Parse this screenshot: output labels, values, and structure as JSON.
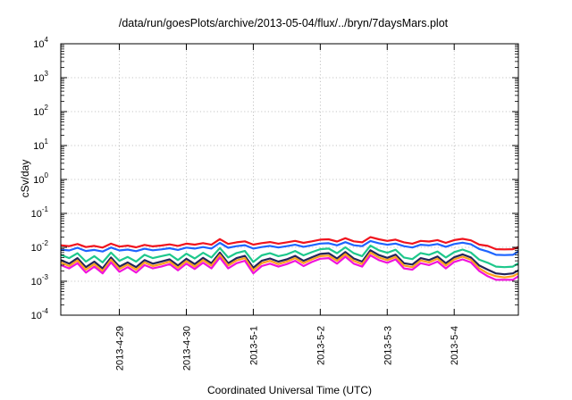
{
  "chart_data": {
    "type": "line",
    "title": "/data/run/goesPlots/archive/2013-05-04/flux/../bryn/7daysMars.plot",
    "xlabel": "Coordinated Universal Time (UTC)",
    "ylabel": "cSv/day",
    "yscale": "log",
    "ylim": [
      0.0001,
      10000
    ],
    "xlim": [
      "2013-04-28T03:00",
      "2013-05-04T23:00"
    ],
    "grid": true,
    "y_ticks": [
      {
        "base": "10",
        "exp": "-4",
        "value": 0.0001
      },
      {
        "base": "10",
        "exp": "-3",
        "value": 0.001
      },
      {
        "base": "10",
        "exp": "-2",
        "value": 0.01
      },
      {
        "base": "10",
        "exp": "-1",
        "value": 0.1
      },
      {
        "base": "10",
        "exp": "0",
        "value": 1
      },
      {
        "base": "10",
        "exp": "1",
        "value": 10
      },
      {
        "base": "10",
        "exp": "2",
        "value": 100
      },
      {
        "base": "10",
        "exp": "3",
        "value": 1000
      },
      {
        "base": "10",
        "exp": "4",
        "value": 10000
      }
    ],
    "x_ticks": [
      {
        "label": "2013-4-29",
        "value": "2013-04-29T00:00"
      },
      {
        "label": "2013-4-30",
        "value": "2013-04-30T00:00"
      },
      {
        "label": "2013-5-1",
        "value": "2013-05-01T00:00"
      },
      {
        "label": "2013-5-2",
        "value": "2013-05-02T00:00"
      },
      {
        "label": "2013-5-3",
        "value": "2013-05-03T00:00"
      },
      {
        "label": "2013-5-4",
        "value": "2013-05-04T00:00"
      }
    ],
    "x": [
      "2013-04-28T03:00",
      "2013-04-28T06:00",
      "2013-04-28T09:00",
      "2013-04-28T12:00",
      "2013-04-28T15:00",
      "2013-04-28T18:00",
      "2013-04-28T21:00",
      "2013-04-29T00:00",
      "2013-04-29T03:00",
      "2013-04-29T06:00",
      "2013-04-29T09:00",
      "2013-04-29T12:00",
      "2013-04-29T15:00",
      "2013-04-29T18:00",
      "2013-04-29T21:00",
      "2013-04-30T00:00",
      "2013-04-30T03:00",
      "2013-04-30T06:00",
      "2013-04-30T09:00",
      "2013-04-30T12:00",
      "2013-04-30T15:00",
      "2013-04-30T18:00",
      "2013-04-30T21:00",
      "2013-05-01T00:00",
      "2013-05-01T03:00",
      "2013-05-01T06:00",
      "2013-05-01T09:00",
      "2013-05-01T12:00",
      "2013-05-01T15:00",
      "2013-05-01T18:00",
      "2013-05-01T21:00",
      "2013-05-02T00:00",
      "2013-05-02T03:00",
      "2013-05-02T06:00",
      "2013-05-02T09:00",
      "2013-05-02T12:00",
      "2013-05-02T15:00",
      "2013-05-02T18:00",
      "2013-05-02T21:00",
      "2013-05-03T00:00",
      "2013-05-03T03:00",
      "2013-05-03T06:00",
      "2013-05-03T09:00",
      "2013-05-03T12:00",
      "2013-05-03T15:00",
      "2013-05-03T18:00",
      "2013-05-03T21:00",
      "2013-05-04T00:00",
      "2013-05-04T03:00",
      "2013-05-04T06:00",
      "2013-05-04T09:00",
      "2013-05-04T12:00",
      "2013-05-04T15:00",
      "2013-05-04T18:00",
      "2013-05-04T21:00",
      "2013-05-04T23:00"
    ],
    "series": [
      {
        "color": "#f0141e",
        "values": [
          0.0115,
          0.0108,
          0.0125,
          0.0102,
          0.011,
          0.0098,
          0.0128,
          0.0105,
          0.0112,
          0.01,
          0.0118,
          0.0107,
          0.0113,
          0.0122,
          0.011,
          0.0128,
          0.012,
          0.0133,
          0.0119,
          0.0175,
          0.0126,
          0.014,
          0.015,
          0.012,
          0.0133,
          0.0143,
          0.0128,
          0.014,
          0.0155,
          0.0135,
          0.015,
          0.0168,
          0.0172,
          0.0148,
          0.0185,
          0.015,
          0.014,
          0.02,
          0.0172,
          0.0155,
          0.0168,
          0.014,
          0.0128,
          0.0155,
          0.0148,
          0.0163,
          0.0135,
          0.0163,
          0.0178,
          0.016,
          0.012,
          0.011,
          0.0088,
          0.0087,
          0.0088,
          0.0102
        ]
      },
      {
        "color": "#1e64ff",
        "values": [
          0.0086,
          0.0081,
          0.0097,
          0.0078,
          0.0084,
          0.0075,
          0.0099,
          0.0081,
          0.0086,
          0.0077,
          0.0091,
          0.0082,
          0.0087,
          0.0094,
          0.0084,
          0.0098,
          0.0092,
          0.0102,
          0.0092,
          0.0135,
          0.0097,
          0.0108,
          0.0116,
          0.0092,
          0.0102,
          0.011,
          0.0099,
          0.0108,
          0.0119,
          0.0104,
          0.0115,
          0.0129,
          0.0132,
          0.0114,
          0.0142,
          0.0115,
          0.0108,
          0.0154,
          0.0132,
          0.0119,
          0.0129,
          0.0108,
          0.0099,
          0.0119,
          0.0114,
          0.0125,
          0.0104,
          0.0125,
          0.0137,
          0.0123,
          0.0089,
          0.0075,
          0.006,
          0.0059,
          0.006,
          0.0075
        ]
      },
      {
        "color": "#1ec88c",
        "values": [
          0.006,
          0.0048,
          0.0067,
          0.0038,
          0.0055,
          0.0036,
          0.007,
          0.004,
          0.0052,
          0.0038,
          0.006,
          0.0048,
          0.0055,
          0.0062,
          0.0042,
          0.0065,
          0.0047,
          0.0069,
          0.005,
          0.0095,
          0.005,
          0.0068,
          0.0078,
          0.0037,
          0.0058,
          0.0067,
          0.0055,
          0.0062,
          0.0078,
          0.0058,
          0.0072,
          0.0088,
          0.0092,
          0.0067,
          0.01,
          0.0067,
          0.0055,
          0.0112,
          0.0082,
          0.0069,
          0.0085,
          0.005,
          0.0045,
          0.0068,
          0.006,
          0.0075,
          0.005,
          0.0072,
          0.0086,
          0.007,
          0.0043,
          0.0035,
          0.0027,
          0.0026,
          0.0027,
          0.0034
        ]
      },
      {
        "color": "#23235a",
        "values": [
          0.0042,
          0.0033,
          0.0048,
          0.0026,
          0.0038,
          0.0024,
          0.005,
          0.0027,
          0.0036,
          0.0026,
          0.0042,
          0.0033,
          0.0038,
          0.0044,
          0.0029,
          0.0046,
          0.0032,
          0.0049,
          0.0034,
          0.007,
          0.0034,
          0.0048,
          0.0056,
          0.0025,
          0.004,
          0.0047,
          0.0038,
          0.0044,
          0.0056,
          0.004,
          0.0051,
          0.0064,
          0.0067,
          0.0047,
          0.0073,
          0.0047,
          0.0038,
          0.0082,
          0.0059,
          0.0049,
          0.0061,
          0.0034,
          0.0031,
          0.0048,
          0.0042,
          0.0054,
          0.0034,
          0.0051,
          0.0062,
          0.005,
          0.0029,
          0.0022,
          0.0017,
          0.0016,
          0.0017,
          0.0021
        ]
      },
      {
        "color": "#ffa01e",
        "values": [
          0.0036,
          0.0028,
          0.0041,
          0.0022,
          0.0032,
          0.002,
          0.0043,
          0.0023,
          0.0031,
          0.0022,
          0.0036,
          0.0028,
          0.0032,
          0.0038,
          0.0025,
          0.0039,
          0.0027,
          0.0042,
          0.0029,
          0.006,
          0.0029,
          0.0041,
          0.0048,
          0.0021,
          0.0034,
          0.004,
          0.0032,
          0.0038,
          0.0048,
          0.0034,
          0.0044,
          0.0055,
          0.0057,
          0.004,
          0.0063,
          0.004,
          0.0032,
          0.007,
          0.005,
          0.0042,
          0.0052,
          0.0029,
          0.0026,
          0.0041,
          0.0036,
          0.0046,
          0.0029,
          0.0044,
          0.0053,
          0.0043,
          0.0024,
          0.0017,
          0.0014,
          0.0013,
          0.0014,
          0.0017
        ]
      },
      {
        "color": "#f014dc",
        "values": [
          0.003,
          0.0024,
          0.0034,
          0.0018,
          0.0027,
          0.0017,
          0.0036,
          0.0019,
          0.0026,
          0.0018,
          0.003,
          0.0024,
          0.0027,
          0.0032,
          0.0021,
          0.0033,
          0.0023,
          0.0035,
          0.0024,
          0.005,
          0.0024,
          0.0034,
          0.004,
          0.0017,
          0.0028,
          0.0033,
          0.0027,
          0.0032,
          0.004,
          0.0028,
          0.0037,
          0.0046,
          0.0048,
          0.0033,
          0.0053,
          0.0033,
          0.0027,
          0.0058,
          0.0042,
          0.0035,
          0.0044,
          0.0024,
          0.0022,
          0.0034,
          0.003,
          0.0038,
          0.0024,
          0.0037,
          0.0044,
          0.0036,
          0.002,
          0.0014,
          0.0011,
          0.0011,
          0.0011,
          0.0014
        ]
      }
    ]
  }
}
